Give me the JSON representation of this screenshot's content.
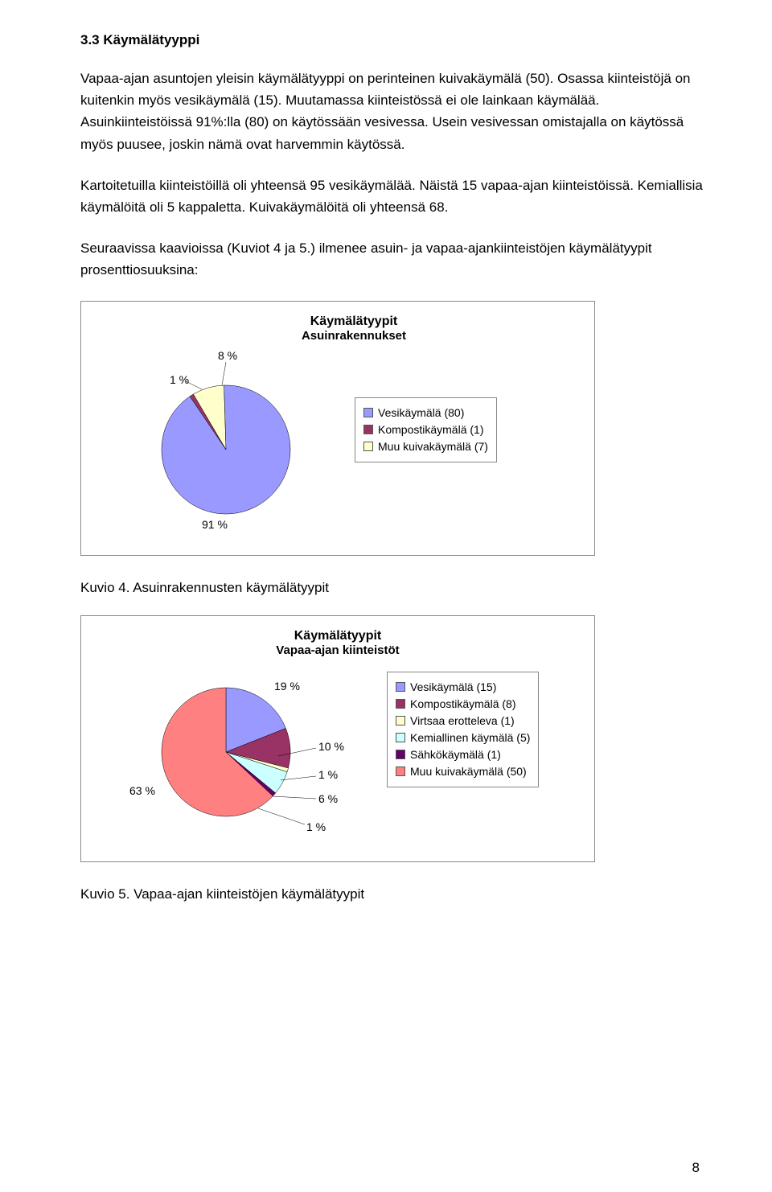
{
  "heading": "3.3 Käymälätyyppi",
  "para1": "Vapaa-ajan asuntojen yleisin käymälätyyppi on perinteinen kuivakäymälä (50). Osassa kiinteistöjä on kuitenkin myös vesikäymälä (15). Muutamassa kiinteistössä ei ole lainkaan käymälää. Asuinkiinteistöissä 91%:lla (80) on käytössään vesivessa. Usein vesivessan omistajalla on käytössä myös puusee, joskin nämä ovat harvemmin käytössä.",
  "para2": "Kartoitetuilla kiinteistöillä oli yhteensä 95 vesikäymälää. Näistä 15 vapaa-ajan kiinteistöissä. Kemiallisia käymälöitä oli 5 kappaletta. Kuivakäymälöitä oli yhteensä 68.",
  "para3": "Seuraavissa kaavioissa (Kuviot 4 ja 5.) ilmenee asuin- ja vapaa-ajankiinteistöjen käymälätyypit prosenttiosuuksina:",
  "chart1": {
    "title": "Käymälätyypit",
    "subtitle": "Asuinrakennukset",
    "type": "pie",
    "slices": [
      {
        "label": "Vesikäymälä (80)",
        "pct": 91,
        "color": "#9999ff"
      },
      {
        "label": "Kompostikäymälä (1)",
        "pct": 1,
        "color": "#993366"
      },
      {
        "label": "Muu kuivakäymälä (7)",
        "pct": 8,
        "color": "#ffffcc"
      }
    ],
    "outside_labels": {
      "p8": "8 %",
      "p1": "1 %",
      "p91": "91 %"
    }
  },
  "caption1": "Kuvio 4. Asuinrakennusten käymälätyypit",
  "chart2": {
    "title": "Käymälätyypit",
    "subtitle": "Vapaa-ajan kiinteistöt",
    "type": "pie",
    "slices": [
      {
        "label": "Vesikäymälä (15)",
        "pct": 19,
        "color": "#9999ff"
      },
      {
        "label": "Kompostikäymälä (8)",
        "pct": 10,
        "color": "#993366"
      },
      {
        "label": "Virtsaa erotteleva (1)",
        "pct": 1,
        "color": "#ffffcc"
      },
      {
        "label": "Kemiallinen käymälä (5)",
        "pct": 6,
        "color": "#ccffff"
      },
      {
        "label": "Sähkökäymälä (1)",
        "pct": 1,
        "color": "#660066"
      },
      {
        "label": "Muu kuivakäymälä (50)",
        "pct": 63,
        "color": "#ff8080"
      }
    ],
    "outside_labels": {
      "p19": "19 %",
      "p10": "10 %",
      "p1a": "1 %",
      "p6": "6 %",
      "p1b": "1 %",
      "p63": "63 %"
    }
  },
  "caption2": "Kuvio 5. Vapaa-ajan kiinteistöjen käymälätyypit",
  "page_number": "8"
}
